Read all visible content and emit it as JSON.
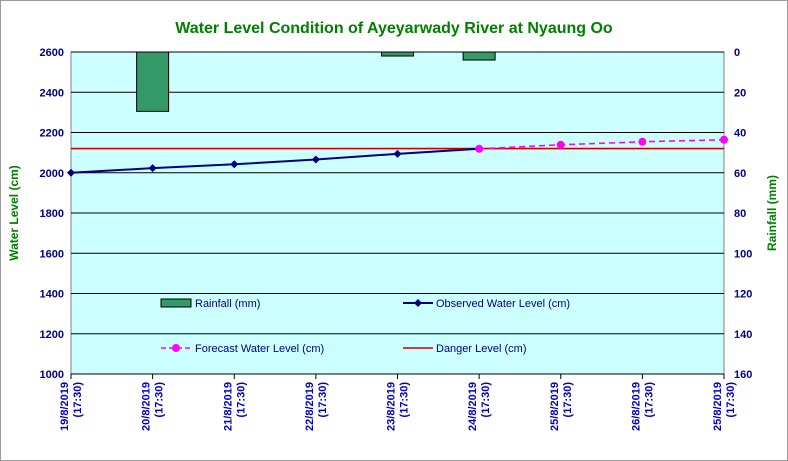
{
  "colors": {
    "title": "#008000",
    "plot_bg": "#ccffff",
    "gridline": "#000000",
    "axis_text": "#000080",
    "axis_title": "#008000",
    "rainfall": "#339966",
    "observed": "#000080",
    "forecast": "#ff00ff",
    "danger": "#cc0000"
  },
  "chart_data": {
    "type": "line",
    "title": "Water Level Condition of Ayeyarwady River at Nyaung Oo",
    "ylabel": "Water Level (cm)",
    "y2label": "Rainfall (mm)",
    "ylim": [
      1000,
      2600
    ],
    "y_ticks": [
      1000,
      1200,
      1400,
      1600,
      1800,
      2000,
      2200,
      2400,
      2600
    ],
    "y2lim": [
      0,
      160
    ],
    "y2_inverted": true,
    "y2_ticks": [
      0,
      20,
      40,
      60,
      80,
      100,
      120,
      140,
      160
    ],
    "grid": "horizontal",
    "categories": [
      [
        "19/8/2019",
        "(17:30)"
      ],
      [
        "20/8/2019",
        "(17:30)"
      ],
      [
        "21/8/2019",
        "(17:30)"
      ],
      [
        "22/8/2019",
        "(17:30)"
      ],
      [
        "23/8/2019",
        "(17:30)"
      ],
      [
        "24/8/2019",
        "(17:30)"
      ],
      [
        "25/8/2019",
        "(17:30)"
      ],
      [
        "26/8/2019",
        "(17:30)"
      ],
      [
        "25/8/2019",
        "(17:30)"
      ]
    ],
    "series": [
      {
        "name": "Rainfall (mm)",
        "type": "bar",
        "axis": "right",
        "values": [
          null,
          29.5,
          null,
          null,
          2,
          null,
          null,
          null,
          null
        ]
      },
      {
        "name": "Observed Water Level (cm)",
        "type": "line",
        "marker": "diamond",
        "values": [
          2000,
          2023,
          2042,
          2066,
          2094,
          2119,
          null,
          null,
          null
        ]
      },
      {
        "name": "Forecast Water Level (cm)",
        "type": "line",
        "marker": "circle",
        "dashed": true,
        "values": [
          null,
          null,
          null,
          null,
          null,
          2119,
          2139,
          2154,
          2164
        ]
      },
      {
        "name": "Danger Level (cm)",
        "type": "line",
        "constant": true,
        "values": [
          2120,
          2120,
          2120,
          2120,
          2120,
          2120,
          2120,
          2120,
          2120
        ]
      }
    ],
    "extra_bars": [
      {
        "after_category": 5,
        "value": 4
      }
    ],
    "legend": "inside-bottom, two columns"
  }
}
